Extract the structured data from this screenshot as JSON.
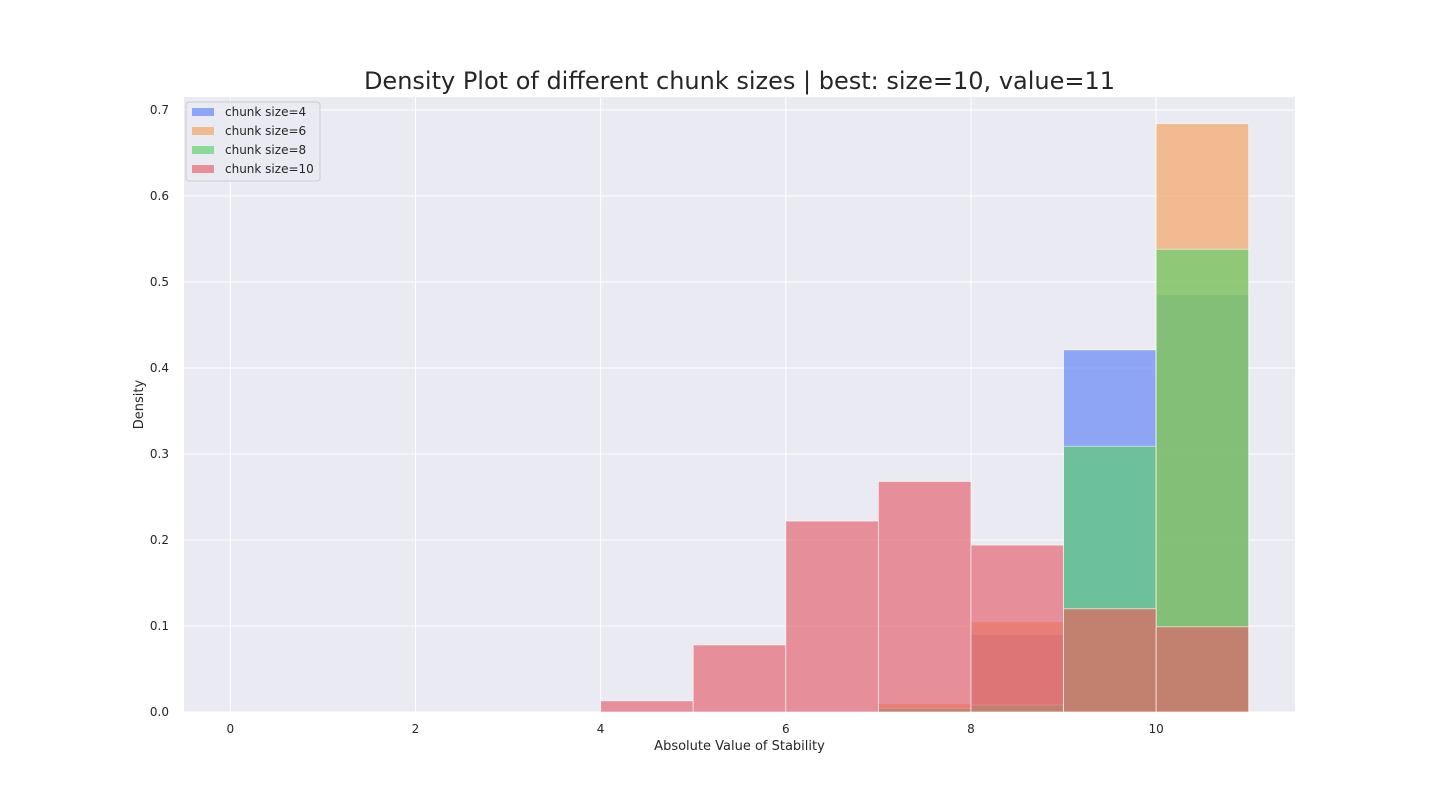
{
  "chart_data": {
    "type": "bar",
    "title": "Density Plot of different chunk sizes | best: size=10, value=11",
    "xlabel": "Absolute Value of Stability",
    "ylabel": "Density",
    "xlim": [
      -0.5,
      11.5
    ],
    "ylim": [
      0,
      0.715
    ],
    "x_ticks": [
      0,
      2,
      4,
      6,
      8,
      10
    ],
    "y_ticks": [
      0.0,
      0.1,
      0.2,
      0.3,
      0.4,
      0.5,
      0.6,
      0.7
    ],
    "y_tick_labels": [
      "0.0",
      "0.1",
      "0.2",
      "0.3",
      "0.4",
      "0.5",
      "0.6",
      "0.7"
    ],
    "grid": true,
    "legend_position": "top-left",
    "bin_edges": [
      4,
      5,
      6,
      7,
      8,
      9,
      10,
      11
    ],
    "series": [
      {
        "name": "chunk size=4",
        "color": "#5b7ff5",
        "values": [
          0,
          0,
          0,
          0.004,
          0.09,
          0.421,
          0.485
        ]
      },
      {
        "name": "chunk size=6",
        "color": "#f5a05b",
        "values": [
          0,
          0,
          0,
          0.01,
          0.105,
          0.12,
          0.684
        ]
      },
      {
        "name": "chunk size=8",
        "color": "#5bd06a",
        "values": [
          0,
          0,
          0,
          0.004,
          0.008,
          0.309,
          0.538
        ]
      },
      {
        "name": "chunk size=10",
        "color": "#e35d6a",
        "values": [
          0.013,
          0.078,
          0.222,
          0.268,
          0.194,
          0.12,
          0.099
        ]
      }
    ]
  }
}
